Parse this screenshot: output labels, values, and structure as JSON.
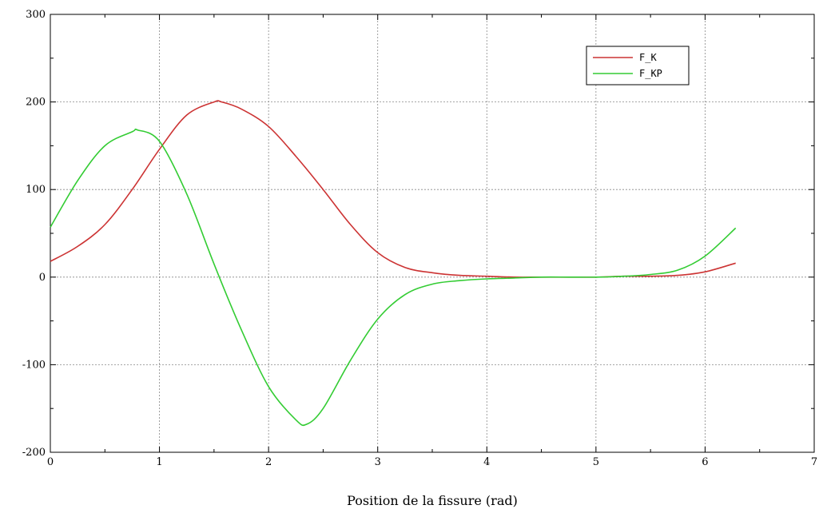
{
  "chart_data": {
    "type": "line",
    "xlabel": "Position de la fissure (rad)",
    "ylabel": "",
    "xlim": [
      0,
      7
    ],
    "ylim": [
      -200,
      300
    ],
    "xticks": [
      0,
      1,
      2,
      3,
      4,
      5,
      6,
      7
    ],
    "yticks": [
      -200,
      -100,
      0,
      100,
      200,
      300
    ],
    "grid": true,
    "legend_position": "top-right",
    "series": [
      {
        "name": "F_K",
        "color": "#cc3333",
        "x": [
          0,
          0.25,
          0.5,
          0.75,
          1.0,
          1.25,
          1.5,
          1.57,
          1.75,
          2.0,
          2.25,
          2.5,
          2.75,
          3.0,
          3.25,
          3.5,
          3.75,
          4.0,
          4.25,
          4.5,
          4.75,
          5.0,
          5.25,
          5.5,
          5.75,
          6.0,
          6.28
        ],
        "y": [
          18,
          35,
          60,
          100,
          146,
          185,
          200,
          200,
          192,
          172,
          138,
          100,
          60,
          28,
          11,
          5,
          2,
          1,
          0,
          0,
          0,
          0,
          1,
          1,
          2,
          6,
          16
        ]
      },
      {
        "name": "F_KP",
        "color": "#33cc33",
        "x": [
          0,
          0.25,
          0.5,
          0.75,
          0.8,
          1.0,
          1.25,
          1.5,
          1.75,
          2.0,
          2.25,
          2.35,
          2.5,
          2.75,
          3.0,
          3.25,
          3.5,
          3.75,
          4.0,
          4.25,
          4.5,
          4.75,
          5.0,
          5.25,
          5.5,
          5.75,
          6.0,
          6.28
        ],
        "y": [
          57,
          110,
          150,
          166,
          168,
          155,
          95,
          15,
          -60,
          -125,
          -163,
          -168,
          -150,
          -95,
          -48,
          -20,
          -8,
          -4,
          -2,
          -1,
          0,
          0,
          0,
          1,
          3,
          8,
          24,
          56
        ]
      }
    ]
  }
}
